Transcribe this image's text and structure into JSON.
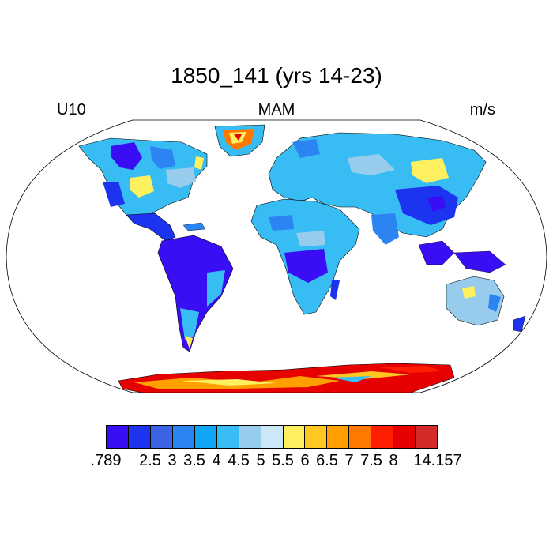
{
  "title": "1850_141 (yrs 14-23)",
  "left_label": "U10",
  "center_label": "MAM",
  "right_label": "m/s",
  "colorbar": {
    "colors": [
      "#3a0ef5",
      "#1c34f0",
      "#3a64e4",
      "#2c84f2",
      "#10a6f5",
      "#38bcf4",
      "#98ccec",
      "#cce8f8",
      "#fff060",
      "#ffc820",
      "#ffa000",
      "#ff7800",
      "#ff1e00",
      "#e60000",
      "#d52a2a"
    ],
    "labels": [
      ".789",
      "2.5",
      "3",
      "3.5",
      "4",
      "4.5",
      "5",
      "5.5",
      "6",
      "6.5",
      "7",
      "7.5",
      "8",
      "14.157"
    ]
  }
}
